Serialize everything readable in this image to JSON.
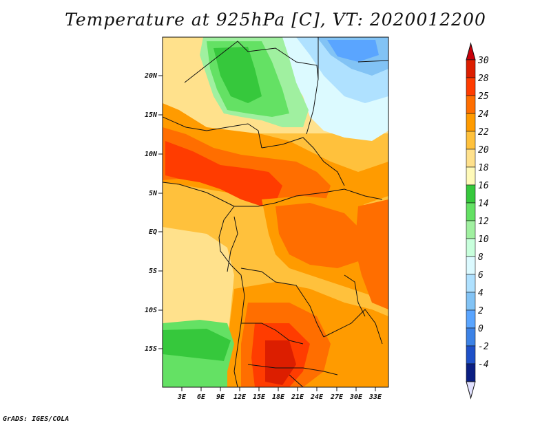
{
  "title": "Temperature at 925hPa [C], VT: 2020012200",
  "footer": "GrADS: IGES/COLA",
  "map": {
    "y_ticks": [
      "20N",
      "15N",
      "10N",
      "5N",
      "EQ",
      "5S",
      "10S",
      "15S"
    ],
    "x_ticks": [
      "3E",
      "6E",
      "9E",
      "12E",
      "15E",
      "18E",
      "21E",
      "24E",
      "27E",
      "30E",
      "33E"
    ],
    "field": "temperature 925hPa",
    "units": "C"
  },
  "colorbar": {
    "labels": [
      "30",
      "28",
      "25",
      "24",
      "22",
      "20",
      "18",
      "16",
      "14",
      "12",
      "10",
      "8",
      "6",
      "4",
      "2",
      "0",
      "-2",
      "-4"
    ],
    "colors": [
      "#dc1e00",
      "#ff3c00",
      "#ff6e00",
      "#ff9b00",
      "#ffc13c",
      "#ffe18c",
      "#fffab9",
      "#36c83c",
      "#64e164",
      "#a0f0a0",
      "#c8ffdc",
      "#dcfaff",
      "#afe1ff",
      "#82c3f5",
      "#5aa5ff",
      "#3c82e6",
      "#1e50c8",
      "#0a1e82"
    ],
    "top_arrow_color": "#c8000a",
    "bottom_arrow_color": "#e1e1ff"
  }
}
